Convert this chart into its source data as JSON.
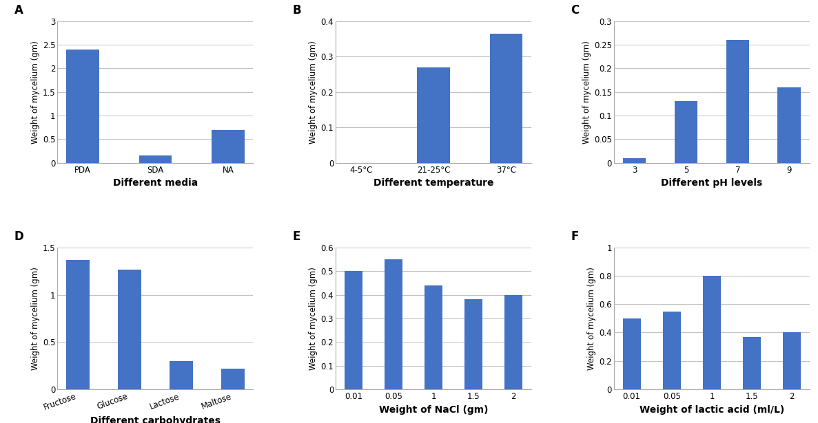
{
  "A": {
    "label": "A",
    "categories": [
      "PDA",
      "SDA",
      "NA"
    ],
    "values": [
      2.4,
      0.15,
      0.7
    ],
    "xlabel": "Different media",
    "ylabel": "Weight of mycelium (gm)",
    "ylim": [
      0,
      3
    ],
    "yticks": [
      0,
      0.5,
      1.0,
      1.5,
      2.0,
      2.5,
      3.0
    ],
    "ytick_labels": [
      "0",
      "0.5",
      "1",
      "1.5",
      "2",
      "2.5",
      "3"
    ]
  },
  "B": {
    "label": "B",
    "categories": [
      "4-5°C",
      "21-25°C",
      "37°C"
    ],
    "values": [
      0.0,
      0.27,
      0.365
    ],
    "xlabel": "Different temperature",
    "ylabel": "Weight of mycelium (gm)",
    "ylim": [
      0,
      0.4
    ],
    "yticks": [
      0,
      0.1,
      0.2,
      0.3,
      0.4
    ],
    "ytick_labels": [
      "0",
      "0.1",
      "0.2",
      "0.3",
      "0.4"
    ]
  },
  "C": {
    "label": "C",
    "categories": [
      "3",
      "5",
      "7",
      "9"
    ],
    "values": [
      0.01,
      0.13,
      0.26,
      0.16
    ],
    "xlabel": "Different pH levels",
    "ylabel": "Weight of mycelium (gm)",
    "ylim": [
      0,
      0.3
    ],
    "yticks": [
      0,
      0.05,
      0.1,
      0.15,
      0.2,
      0.25,
      0.3
    ],
    "ytick_labels": [
      "0",
      "0.05",
      "0.1",
      "0.15",
      "0.2",
      "0.25",
      "0.3"
    ]
  },
  "D": {
    "label": "D",
    "categories": [
      "Fructose",
      "Glucose",
      "Lactose",
      "Maltose"
    ],
    "values": [
      1.37,
      1.27,
      0.3,
      0.22
    ],
    "xlabel": "Different carbohydrates",
    "ylabel": "Weight of mycelium (gm)",
    "ylim": [
      0,
      1.5
    ],
    "yticks": [
      0,
      0.5,
      1.0,
      1.5
    ],
    "ytick_labels": [
      "0",
      "0.5",
      "1",
      "1.5"
    ]
  },
  "E": {
    "label": "E",
    "categories": [
      "0.01",
      "0.05",
      "1",
      "1.5",
      "2"
    ],
    "values": [
      0.5,
      0.55,
      0.44,
      0.38,
      0.4
    ],
    "xlabel": "Weight of NaCl (gm)",
    "ylabel": "Weight of mycelium (gm)",
    "ylim": [
      0,
      0.6
    ],
    "yticks": [
      0,
      0.1,
      0.2,
      0.3,
      0.4,
      0.5,
      0.6
    ],
    "ytick_labels": [
      "0",
      "0.1",
      "0.2",
      "0.3",
      "0.4",
      "0.5",
      "0.6"
    ]
  },
  "F": {
    "label": "F",
    "categories": [
      "0.01",
      "0.05",
      "1",
      "1.5",
      "2"
    ],
    "values": [
      0.5,
      0.55,
      0.8,
      0.37,
      0.4
    ],
    "xlabel": "Weight of lactic acid (ml/L)",
    "ylabel": "Weight of mycelium (gm)",
    "ylim": [
      0,
      1.0
    ],
    "yticks": [
      0,
      0.2,
      0.4,
      0.6,
      0.8,
      1.0
    ],
    "ytick_labels": [
      "0",
      "0.2",
      "0.4",
      "0.6",
      "0.8",
      "1"
    ]
  },
  "bar_color": "#4472C4",
  "grid_color": "#C0C0C0",
  "bg_color": "#FFFFFF",
  "panel_bg": "#FFFFFF",
  "xlabel_fontsize": 10,
  "ylabel_fontsize": 8.5,
  "tick_fontsize": 8.5,
  "label_fontsize": 12,
  "bar_width": 0.45,
  "spine_color": "#AAAAAA"
}
